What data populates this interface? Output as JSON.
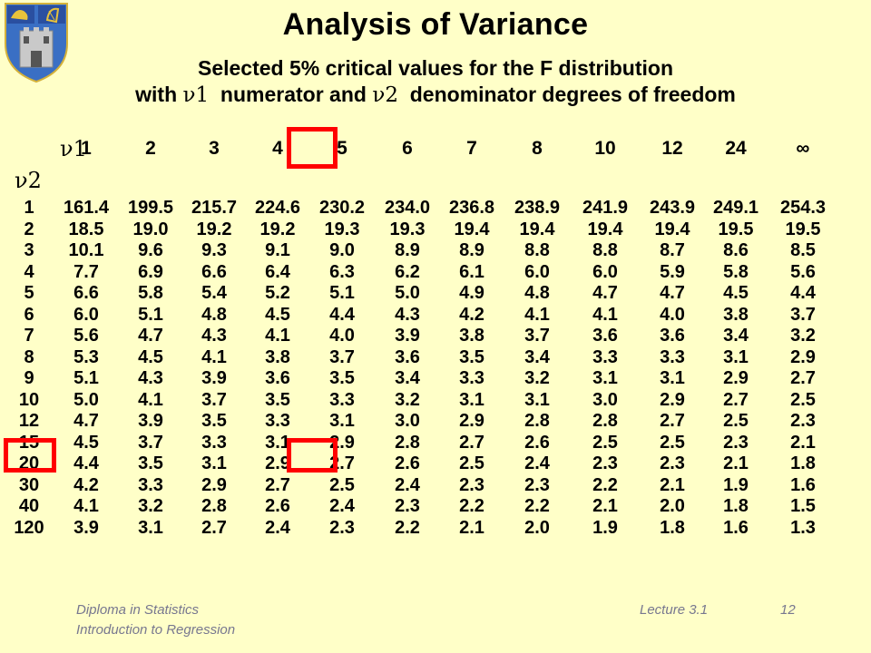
{
  "title": "Analysis of Variance",
  "subtitle": {
    "line1": "Selected 5% critical values for the F distribution",
    "line2_before": "with ",
    "line2_nu1": "ν1",
    "line2_middle": "  numerator and ",
    "line2_nu2": "ν2",
    "line2_after": "  denominator degrees of freedom"
  },
  "table": {
    "nu1_label": "ν1",
    "nu2_label": "ν2",
    "columns": [
      "1",
      "2",
      "3",
      "4",
      "5",
      "6",
      "7",
      "8",
      "10",
      "12",
      "24",
      "∞"
    ],
    "rows": [
      {
        "df": "1",
        "values": [
          "161.4",
          "199.5",
          "215.7",
          "224.6",
          "230.2",
          "234.0",
          "236.8",
          "238.9",
          "241.9",
          "243.9",
          "249.1",
          "254.3"
        ]
      },
      {
        "df": "2",
        "values": [
          "18.5",
          "19.0",
          "19.2",
          "19.2",
          "19.3",
          "19.3",
          "19.4",
          "19.4",
          "19.4",
          "19.4",
          "19.5",
          "19.5"
        ]
      },
      {
        "df": "3",
        "values": [
          "10.1",
          "9.6",
          "9.3",
          "9.1",
          "9.0",
          "8.9",
          "8.9",
          "8.8",
          "8.8",
          "8.7",
          "8.6",
          "8.5"
        ]
      },
      {
        "df": "4",
        "values": [
          "7.7",
          "6.9",
          "6.6",
          "6.4",
          "6.3",
          "6.2",
          "6.1",
          "6.0",
          "6.0",
          "5.9",
          "5.8",
          "5.6"
        ]
      },
      {
        "df": "5",
        "values": [
          "6.6",
          "5.8",
          "5.4",
          "5.2",
          "5.1",
          "5.0",
          "4.9",
          "4.8",
          "4.7",
          "4.7",
          "4.5",
          "4.4"
        ]
      },
      {
        "df": "6",
        "values": [
          "6.0",
          "5.1",
          "4.8",
          "4.5",
          "4.4",
          "4.3",
          "4.2",
          "4.1",
          "4.1",
          "4.0",
          "3.8",
          "3.7"
        ]
      },
      {
        "df": "7",
        "values": [
          "5.6",
          "4.7",
          "4.3",
          "4.1",
          "4.0",
          "3.9",
          "3.8",
          "3.7",
          "3.6",
          "3.6",
          "3.4",
          "3.2"
        ]
      },
      {
        "df": "8",
        "values": [
          "5.3",
          "4.5",
          "4.1",
          "3.8",
          "3.7",
          "3.6",
          "3.5",
          "3.4",
          "3.3",
          "3.3",
          "3.1",
          "2.9"
        ]
      },
      {
        "df": "9",
        "values": [
          "5.1",
          "4.3",
          "3.9",
          "3.6",
          "3.5",
          "3.4",
          "3.3",
          "3.2",
          "3.1",
          "3.1",
          "2.9",
          "2.7"
        ]
      },
      {
        "df": "10",
        "values": [
          "5.0",
          "4.1",
          "3.7",
          "3.5",
          "3.3",
          "3.2",
          "3.1",
          "3.1",
          "3.0",
          "2.9",
          "2.7",
          "2.5"
        ]
      },
      {
        "df": "12",
        "values": [
          "4.7",
          "3.9",
          "3.5",
          "3.3",
          "3.1",
          "3.0",
          "2.9",
          "2.8",
          "2.8",
          "2.7",
          "2.5",
          "2.3"
        ]
      },
      {
        "df": "15",
        "values": [
          "4.5",
          "3.7",
          "3.3",
          "3.1",
          "2.9",
          "2.8",
          "2.7",
          "2.6",
          "2.5",
          "2.5",
          "2.3",
          "2.1"
        ]
      },
      {
        "df": "20",
        "values": [
          "4.4",
          "3.5",
          "3.1",
          "2.9",
          "2.7",
          "2.6",
          "2.5",
          "2.4",
          "2.3",
          "2.3",
          "2.1",
          "1.8"
        ]
      },
      {
        "df": "30",
        "values": [
          "4.2",
          "3.3",
          "2.9",
          "2.7",
          "2.5",
          "2.4",
          "2.3",
          "2.3",
          "2.2",
          "2.1",
          "1.9",
          "1.6"
        ]
      },
      {
        "df": "40",
        "values": [
          "4.1",
          "3.2",
          "2.8",
          "2.6",
          "2.4",
          "2.3",
          "2.2",
          "2.2",
          "2.1",
          "2.0",
          "1.8",
          "1.5"
        ]
      },
      {
        "df": "120",
        "values": [
          "3.9",
          "3.1",
          "2.7",
          "2.4",
          "2.3",
          "2.2",
          "2.1",
          "2.0",
          "1.9",
          "1.8",
          "1.6",
          "1.3"
        ]
      }
    ],
    "highlight": {
      "column": "4",
      "row": "12",
      "color": "#ff0000"
    }
  },
  "footer": {
    "course": "Diploma in Statistics",
    "module": "Introduction to Regression",
    "lecture": "Lecture 3.1",
    "page": "12"
  },
  "colors": {
    "background": "#ffffc8",
    "footer_text": "#77778f",
    "highlight": "#ff0000"
  },
  "icons": {
    "crest": "university-crest-icon"
  }
}
